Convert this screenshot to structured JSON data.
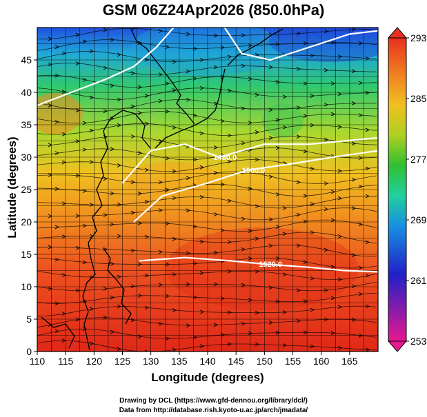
{
  "title": "GSM 06Z24Apr2026 (850.0hPa)",
  "axes": {
    "xlabel": "Longitude (degrees)",
    "ylabel": "Latitude  (degrees)",
    "x_ticks": [
      "110",
      "115",
      "120",
      "125",
      "130",
      "135",
      "140",
      "145",
      "150",
      "155",
      "160",
      "165"
    ],
    "y_ticks": [
      "0",
      "5",
      "10",
      "15",
      "20",
      "25",
      "30",
      "35",
      "40",
      "45"
    ]
  },
  "colorbar": {
    "ticks": [
      "293",
      "285",
      "277",
      "269",
      "261",
      "253"
    ],
    "colors": [
      "#e81890",
      "#2020c8",
      "#1890e0",
      "#20d0a0",
      "#30c030",
      "#b0d020",
      "#f0c020",
      "#f08020",
      "#e83020"
    ]
  },
  "contour_labels": [
    "1480.0",
    "1500.0",
    "1520.0"
  ],
  "credits": {
    "line1": "Drawing by DCL (https://www.gfd-dennou.org/library/dcl/)",
    "line2": "Data from http://database.rish.kyoto-u.ac.jp/arch/jmadata/"
  },
  "chart_data": {
    "type": "heatmap",
    "title": "GSM 06Z24Apr2026 (850.0hPa)",
    "xlabel": "Longitude (degrees)",
    "ylabel": "Latitude  (degrees)",
    "xlim": [
      110,
      170
    ],
    "ylim": [
      0,
      50
    ],
    "colorbar_range": [
      253,
      293
    ],
    "colorbar_ticks": [
      293,
      285,
      277,
      269,
      261,
      253
    ],
    "contours": [
      {
        "label": "1480.0",
        "points": [
          [
            125,
            26
          ],
          [
            130,
            31
          ],
          [
            136,
            32
          ],
          [
            142,
            30
          ],
          [
            150,
            32
          ],
          [
            158,
            32
          ],
          [
            170,
            33
          ]
        ]
      },
      {
        "label": "1500.0",
        "points": [
          [
            127,
            20
          ],
          [
            132,
            24
          ],
          [
            140,
            26
          ],
          [
            147,
            28
          ],
          [
            155,
            29
          ],
          [
            162,
            30
          ],
          [
            170,
            31
          ]
        ]
      },
      {
        "label": "1520.0",
        "points": [
          [
            128,
            14
          ],
          [
            136,
            14.5
          ],
          [
            144,
            14
          ],
          [
            150,
            13.5
          ],
          [
            158,
            13
          ],
          [
            164,
            12.5
          ],
          [
            170,
            12.3
          ]
        ]
      },
      {
        "label": "",
        "points": [
          [
            110,
            38
          ],
          [
            116,
            40
          ],
          [
            122,
            42
          ],
          [
            127,
            44
          ],
          [
            131,
            47
          ],
          [
            134,
            50
          ]
        ]
      },
      {
        "label": "",
        "points": [
          [
            143,
            50
          ],
          [
            146,
            46
          ],
          [
            151,
            45
          ],
          [
            158,
            47
          ],
          [
            165,
            49
          ],
          [
            170,
            49.5
          ]
        ]
      }
    ],
    "grid": true
  }
}
